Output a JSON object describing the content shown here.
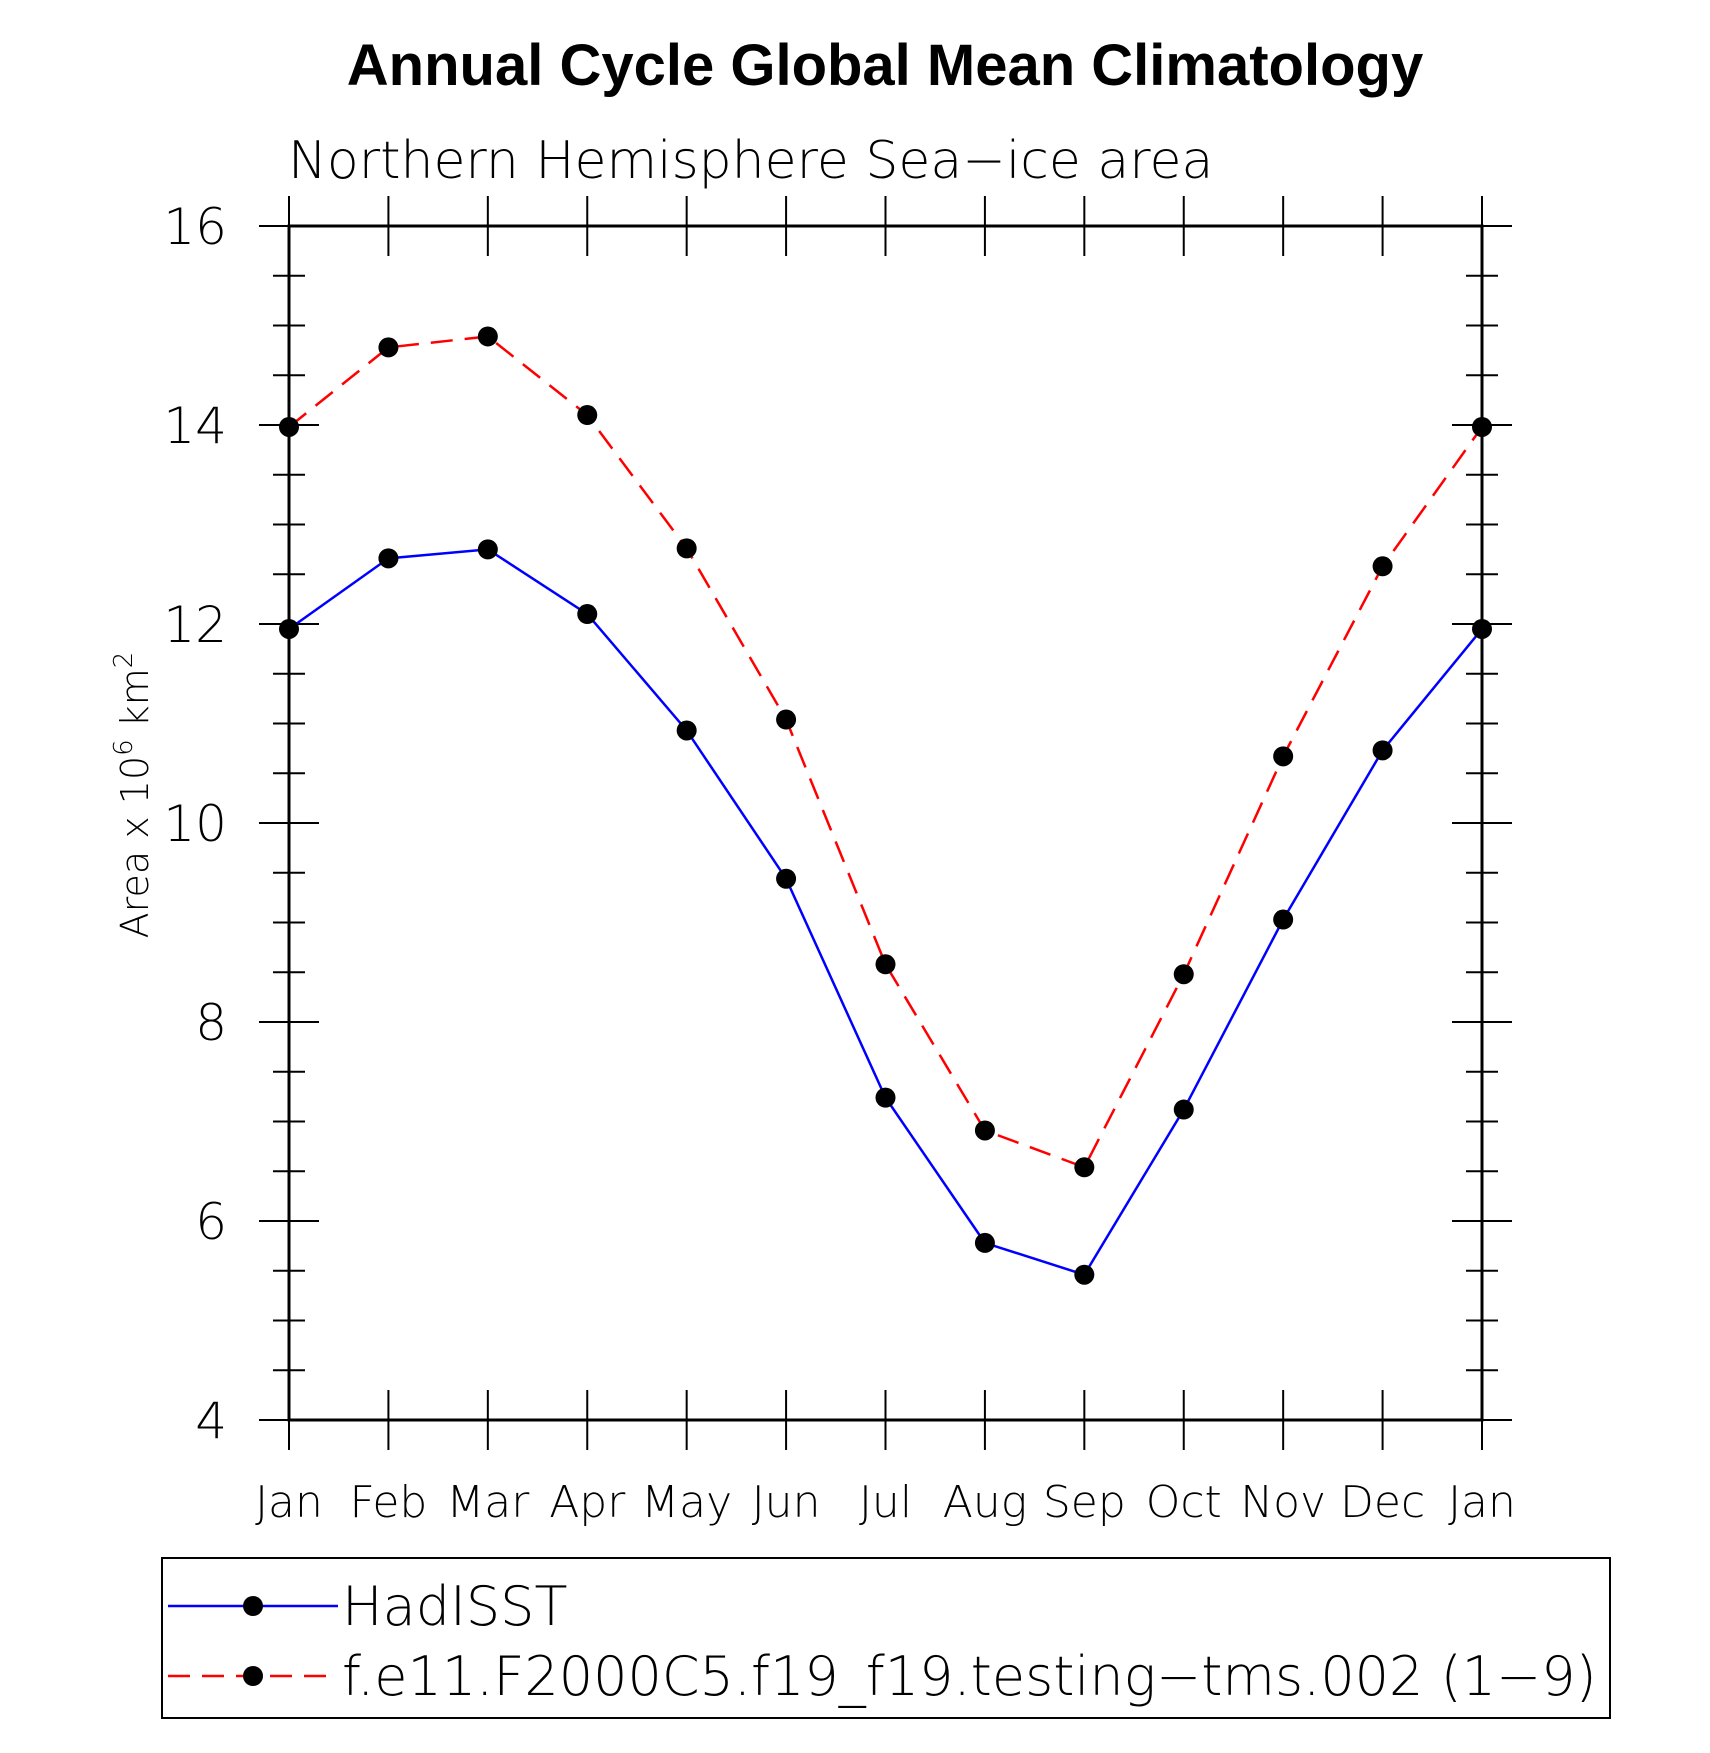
{
  "chart_data": {
    "type": "line",
    "title": "Annual Cycle Global Mean Climatology",
    "subtitle": "Northern Hemisphere Sea−ice area",
    "ylabel": {
      "base": "Area x 10",
      "exp1": "6",
      "unit": " km",
      "exp2": "2"
    },
    "ylim": [
      4,
      16
    ],
    "yticks": [
      "4",
      "6",
      "8",
      "10",
      "12",
      "14",
      "16"
    ],
    "categories": [
      "Jan",
      "Feb",
      "Mar",
      "Apr",
      "May",
      "Jun",
      "Jul",
      "Aug",
      "Sep",
      "Oct",
      "Nov",
      "Dec",
      "Jan"
    ],
    "series": [
      {
        "name": "HadISST",
        "color": "#0000ff",
        "dash": "solid",
        "values": [
          11.95,
          12.66,
          12.75,
          12.1,
          10.93,
          9.44,
          7.24,
          5.78,
          5.46,
          7.12,
          9.03,
          10.73,
          11.95
        ]
      },
      {
        "name": "f.e11.F2000C5.f19_f19.testing−tms.002 (1−9)",
        "color": "#ff0000",
        "dash": "dashed",
        "values": [
          13.98,
          14.78,
          14.89,
          14.1,
          12.76,
          11.04,
          8.58,
          6.91,
          6.54,
          8.48,
          10.67,
          12.58,
          13.98
        ]
      }
    ],
    "legend_position": "bottom"
  }
}
